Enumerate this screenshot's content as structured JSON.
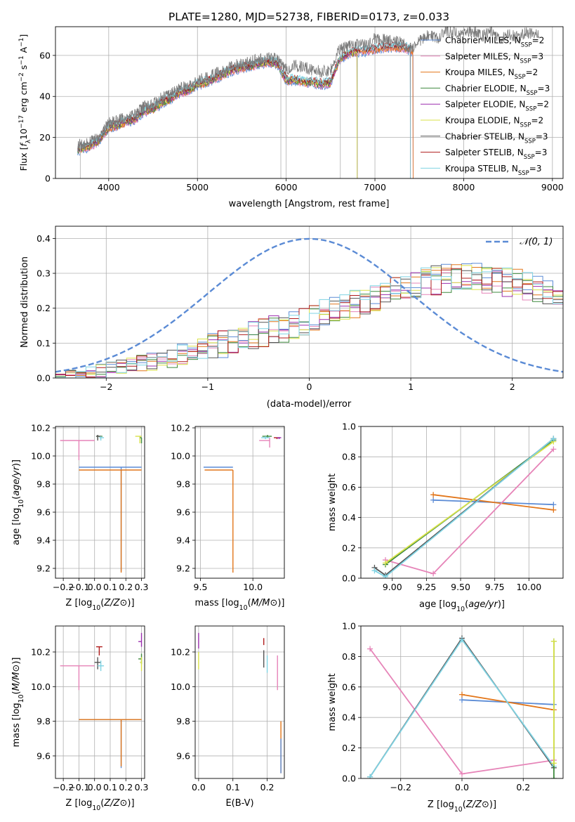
{
  "title": "PLATE=1280, MJD=52738, FIBERID=0173, z=0.033",
  "models": [
    {
      "name": "Chabrier MILES",
      "nssp": "2",
      "color": "#5b8bd5"
    },
    {
      "name": "Salpeter MILES",
      "nssp": "3",
      "color": "#e684b8"
    },
    {
      "name": "Kroupa MILES",
      "nssp": "2",
      "color": "#e2761a"
    },
    {
      "name": "Chabrier ELODIE",
      "nssp": "3",
      "color": "#3f8a3f"
    },
    {
      "name": "Salpeter ELODIE",
      "nssp": "2",
      "color": "#9b2fae"
    },
    {
      "name": "Kroupa ELODIE",
      "nssp": "2",
      "color": "#d9e24a"
    },
    {
      "name": "Chabrier STELIB",
      "nssp": "3",
      "color": "#555555"
    },
    {
      "name": "Salpeter STELIB",
      "nssp": "3",
      "color": "#b01c1c"
    },
    {
      "name": "Kroupa STELIB",
      "nssp": "3",
      "color": "#7fd3e3"
    }
  ],
  "chart_data": [
    {
      "id": "spectrum",
      "type": "line",
      "xlabel": "wavelength [Angstrom, rest frame]",
      "ylabel_parts": [
        "Flux [",
        "f",
        "λ",
        "10",
        "−17",
        " erg cm",
        "−2",
        " s",
        "−1",
        " A",
        "−1",
        "]"
      ],
      "xlim": [
        3400,
        9120
      ],
      "ylim": [
        0,
        74
      ],
      "xticks": [
        4000,
        5000,
        6000,
        7000,
        8000,
        9000
      ],
      "yticks": [
        0,
        20,
        40,
        60
      ],
      "data_envelope": {
        "x": [
          3650,
          3800,
          3900,
          4000,
          4100,
          4200,
          4300,
          4400,
          4500,
          4600,
          4700,
          4800,
          4900,
          5000,
          5100,
          5200,
          5300,
          5400,
          5500,
          5600,
          5700,
          5800,
          5900,
          6000,
          6100,
          6200,
          6300,
          6400,
          6500,
          6600,
          6700,
          6800,
          6900,
          7000,
          7100,
          7200,
          7300,
          7400,
          7500,
          7600,
          7700,
          7800,
          7900,
          8000,
          8100,
          8200,
          8300,
          8400,
          8500,
          8600,
          8700,
          8800
        ],
        "y": [
          16,
          18,
          20,
          27,
          28,
          30,
          31,
          35,
          36,
          40,
          41,
          44,
          45,
          48,
          49,
          51,
          53,
          55,
          56,
          57,
          58,
          59,
          58,
          53,
          55,
          54,
          53,
          52,
          53,
          63,
          65,
          66,
          65,
          68,
          68,
          67,
          66,
          63,
          67,
          70,
          68,
          72,
          71,
          70,
          72,
          69,
          72,
          68,
          70,
          69,
          71,
          71
        ]
      },
      "model_envelope": {
        "x": [
          3650,
          3800,
          3900,
          4000,
          4100,
          4200,
          4300,
          4400,
          4500,
          4600,
          4700,
          4800,
          4900,
          5000,
          5100,
          5200,
          5300,
          5400,
          5500,
          5600,
          5700,
          5800,
          5900,
          6000,
          6100,
          6200,
          6300,
          6400,
          6500,
          6600,
          6700,
          6800,
          6900,
          7000,
          7100,
          7200,
          7300,
          7400
        ],
        "y": [
          14,
          16,
          19,
          25,
          26,
          28,
          29,
          33,
          34,
          37,
          39,
          42,
          43,
          46,
          47,
          49,
          51,
          53,
          54,
          55,
          56,
          57,
          56,
          48,
          48,
          47,
          47,
          46,
          47,
          58,
          61,
          62,
          62,
          63,
          64,
          64,
          64,
          63
        ]
      },
      "model_cutoffs": [
        {
          "model": "Salpeter MILES",
          "x": 7430
        },
        {
          "model": "Kroupa MILES",
          "x": 7430
        },
        {
          "model": "Chabrier MILES",
          "x": 7430
        },
        {
          "model": "Kroupa ELODIE",
          "x": 6800
        },
        {
          "model": "Salpeter ELODIE",
          "x": 6800
        },
        {
          "model": "Chabrier ELODIE",
          "x": 6800
        }
      ]
    },
    {
      "id": "residuals",
      "type": "step",
      "xlabel": "(data-model)/error",
      "ylabel": "Normed distribution",
      "xlim": [
        -2.5,
        2.5
      ],
      "ylim": [
        0,
        0.435
      ],
      "xticks": [
        -2,
        -1,
        0,
        1,
        2
      ],
      "yticks": [
        0.0,
        0.1,
        0.2,
        0.3,
        0.4
      ],
      "normal_label": "𝒩(0, 1)",
      "normal_color": "#5b8bd5",
      "bins": {
        "start": -2.5,
        "width": 0.1,
        "count": 50
      },
      "base_profile": [
        0.005,
        0.008,
        0.012,
        0.016,
        0.02,
        0.025,
        0.03,
        0.035,
        0.04,
        0.045,
        0.052,
        0.06,
        0.067,
        0.075,
        0.082,
        0.09,
        0.097,
        0.105,
        0.112,
        0.12,
        0.128,
        0.136,
        0.145,
        0.155,
        0.165,
        0.175,
        0.185,
        0.195,
        0.205,
        0.215,
        0.225,
        0.235,
        0.245,
        0.255,
        0.262,
        0.27,
        0.276,
        0.28,
        0.285,
        0.288,
        0.29,
        0.288,
        0.285,
        0.28,
        0.276,
        0.27,
        0.262,
        0.255,
        0.25,
        0.245
      ]
    },
    {
      "id": "age-vs-z",
      "type": "errorbar",
      "xlabel": "Z [log10(Z/Z⊙)]",
      "ylabel": "age  [log10(age/yr)]",
      "xlim": [
        -0.25,
        0.32
      ],
      "ylim": [
        9.13,
        10.21
      ],
      "xticks": [
        -0.2,
        -0.1,
        0.0,
        0.1,
        0.2,
        0.3
      ],
      "yticks": [
        9.2,
        9.4,
        9.6,
        9.8,
        10.0,
        10.2
      ],
      "points": [
        {
          "model": "Chabrier MILES",
          "x": 0.17,
          "y": 9.92,
          "xerr": [
            0.27,
            0.13
          ],
          "yerr": [
            0.74,
            0.0
          ]
        },
        {
          "model": "Kroupa MILES",
          "x": 0.17,
          "y": 9.9,
          "xerr": [
            0.27,
            0.13
          ],
          "yerr": [
            0.73,
            0.0
          ]
        },
        {
          "model": "Salpeter MILES",
          "x": -0.1,
          "y": 10.11,
          "xerr": [
            0.12,
            0.1
          ],
          "yerr": [
            0.14,
            0.0
          ]
        },
        {
          "model": "Chabrier ELODIE",
          "x": 0.02,
          "y": 10.14,
          "xerr": [
            0.01,
            0.03
          ],
          "yerr": [
            0.02,
            0.01
          ]
        },
        {
          "model": "Chabrier STELIB",
          "x": 0.02,
          "y": 10.14,
          "xerr": [
            0.01,
            0.02
          ],
          "yerr": [
            0.03,
            0.01
          ]
        },
        {
          "model": "Kroupa STELIB",
          "x": 0.04,
          "y": 10.13,
          "xerr": [
            0.01,
            0.02
          ],
          "yerr": [
            0.02,
            0.01
          ]
        },
        {
          "model": "Kroupa ELODIE",
          "x": 0.29,
          "y": 10.14,
          "xerr": [
            0.03,
            0.01
          ],
          "yerr": [
            0.05,
            0.0
          ]
        },
        {
          "model": "Chabrier ELODIE",
          "x": 0.3,
          "y": 10.13,
          "xerr": [
            0.01,
            0.0
          ],
          "yerr": [
            0.04,
            0.0
          ]
        }
      ]
    },
    {
      "id": "age-vs-mass",
      "type": "errorbar",
      "xlabel": "mass [log10(M/M⊙)]",
      "ylabel": "",
      "xlim": [
        9.45,
        10.3
      ],
      "ylim": [
        9.13,
        10.21
      ],
      "xticks": [
        9.5,
        10.0
      ],
      "yticks": [
        9.2,
        9.4,
        9.6,
        9.8,
        10.0,
        10.2
      ],
      "points": [
        {
          "model": "Chabrier MILES",
          "x": 9.81,
          "y": 9.92,
          "xerr": [
            0.28,
            0.0
          ],
          "yerr": [
            0.0,
            0.0
          ]
        },
        {
          "model": "Kroupa MILES",
          "x": 9.81,
          "y": 9.9,
          "xerr": [
            0.27,
            0.0
          ],
          "yerr": [
            0.73,
            0.0
          ]
        },
        {
          "model": "Salpeter MILES",
          "x": 10.16,
          "y": 10.11,
          "xerr": [
            0.1,
            0.0
          ],
          "yerr": [
            0.05,
            0.02
          ]
        },
        {
          "model": "Chabrier ELODIE",
          "x": 10.14,
          "y": 10.14,
          "xerr": [
            0.05,
            0.04
          ],
          "yerr": [
            0.01,
            0.01
          ]
        },
        {
          "model": "Kroupa STELIB",
          "x": 10.12,
          "y": 10.13,
          "xerr": [
            0.04,
            0.04
          ],
          "yerr": [
            0.01,
            0.01
          ]
        },
        {
          "model": "Salpeter STELIB",
          "x": 10.23,
          "y": 10.13,
          "xerr": [
            0.03,
            0.03
          ],
          "yerr": [
            0.01,
            0.0
          ]
        },
        {
          "model": "Salpeter ELODIE",
          "x": 10.25,
          "y": 10.13,
          "xerr": [
            0.02,
            0.02
          ],
          "yerr": [
            0.01,
            0.0
          ]
        }
      ]
    },
    {
      "id": "weight-vs-age",
      "type": "line",
      "xlabel": "age  [log10(age/yr)]",
      "ylabel": "mass weight",
      "xlim": [
        8.77,
        10.25
      ],
      "ylim": [
        0,
        1.0
      ],
      "xticks": [
        9.0,
        9.25,
        9.5,
        9.75,
        10.0
      ],
      "yticks": [
        0.0,
        0.2,
        0.4,
        0.6,
        0.8,
        1.0
      ],
      "series": [
        {
          "model": "Chabrier MILES",
          "x": [
            9.3,
            10.18
          ],
          "y": [
            0.515,
            0.485
          ]
        },
        {
          "model": "Kroupa MILES",
          "x": [
            9.3,
            10.18
          ],
          "y": [
            0.55,
            0.45
          ]
        },
        {
          "model": "Salpeter MILES",
          "x": [
            8.95,
            9.3,
            10.18
          ],
          "y": [
            0.12,
            0.03,
            0.85
          ]
        },
        {
          "model": "Chabrier ELODIE",
          "x": [
            8.95,
            10.18
          ],
          "y": [
            0.09,
            0.91
          ]
        },
        {
          "model": "Kroupa ELODIE",
          "x": [
            8.95,
            10.18
          ],
          "y": [
            0.1,
            0.9
          ]
        },
        {
          "model": "Chabrier STELIB",
          "x": [
            8.87,
            8.95,
            10.18
          ],
          "y": [
            0.07,
            0.02,
            0.92
          ]
        },
        {
          "model": "Kroupa STELIB",
          "x": [
            8.87,
            8.95,
            10.18
          ],
          "y": [
            0.05,
            0.01,
            0.92
          ]
        }
      ]
    },
    {
      "id": "mass-vs-z",
      "type": "errorbar",
      "xlabel": "Z [log10(Z/Z⊙)]",
      "ylabel": "mass [log10(M/M⊙)]",
      "xlim": [
        -0.25,
        0.32
      ],
      "ylim": [
        9.47,
        10.35
      ],
      "xticks": [
        -0.2,
        -0.1,
        0.0,
        0.1,
        0.2,
        0.3
      ],
      "yticks": [
        9.6,
        9.8,
        10.0,
        10.2
      ],
      "points": [
        {
          "model": "Chabrier MILES",
          "x": 0.17,
          "y": 9.81,
          "xerr": [
            0.27,
            0.13
          ],
          "yerr": [
            0.28,
            0.0
          ]
        },
        {
          "model": "Kroupa MILES",
          "x": 0.17,
          "y": 9.81,
          "xerr": [
            0.27,
            0.13
          ],
          "yerr": [
            0.27,
            0.0
          ]
        },
        {
          "model": "Salpeter MILES",
          "x": -0.1,
          "y": 10.12,
          "xerr": [
            0.12,
            0.1
          ],
          "yerr": [
            0.14,
            0.0
          ]
        },
        {
          "model": "Salpeter STELIB",
          "x": 0.03,
          "y": 10.23,
          "xerr": [
            0.02,
            0.02
          ],
          "yerr": [
            0.05,
            0.0
          ]
        },
        {
          "model": "Chabrier STELIB",
          "x": 0.02,
          "y": 10.14,
          "xerr": [
            0.02,
            0.02
          ],
          "yerr": [
            0.04,
            0.03
          ]
        },
        {
          "model": "Kroupa STELIB",
          "x": 0.04,
          "y": 10.12,
          "xerr": [
            0.02,
            0.02
          ],
          "yerr": [
            0.03,
            0.03
          ]
        },
        {
          "model": "Salpeter ELODIE",
          "x": 0.3,
          "y": 10.26,
          "xerr": [
            0.02,
            0.0
          ],
          "yerr": [
            0.03,
            0.05
          ]
        },
        {
          "model": "Chabrier ELODIE",
          "x": 0.3,
          "y": 10.16,
          "xerr": [
            0.02,
            0.0
          ],
          "yerr": [
            0.03,
            0.03
          ]
        },
        {
          "model": "Kroupa ELODIE",
          "x": 0.3,
          "y": 10.14,
          "xerr": [
            0.01,
            0.0
          ],
          "yerr": [
            0.05,
            0.03
          ]
        }
      ]
    },
    {
      "id": "mass-vs-ebv",
      "type": "errorbar",
      "xlabel": "E(B-V)",
      "ylabel": "",
      "xlim": [
        -0.01,
        0.25
      ],
      "ylim": [
        9.47,
        10.35
      ],
      "xticks": [
        0.0,
        0.1,
        0.2
      ],
      "yticks": [
        9.6,
        9.8,
        10.0,
        10.2
      ],
      "points": [
        {
          "model": "Salpeter ELODIE",
          "x": 0.0,
          "y": 10.26,
          "xerr": [
            0.0,
            0.0
          ],
          "yerr": [
            0.04,
            0.05
          ]
        },
        {
          "model": "Kroupa ELODIE",
          "x": 0.0,
          "y": 10.15,
          "xerr": [
            0.0,
            0.0
          ],
          "yerr": [
            0.05,
            0.05
          ]
        },
        {
          "model": "Salpeter STELIB",
          "x": 0.19,
          "y": 10.26,
          "xerr": [
            0.0,
            0.0
          ],
          "yerr": [
            0.02,
            0.02
          ]
        },
        {
          "model": "Chabrier STELIB",
          "x": 0.19,
          "y": 10.16,
          "xerr": [
            0.0,
            0.0
          ],
          "yerr": [
            0.05,
            0.05
          ]
        },
        {
          "model": "Kroupa STELIB",
          "x": 0.2,
          "y": 10.13,
          "xerr": [
            0.0,
            0.0
          ],
          "yerr": [
            0.05,
            0.05
          ]
        },
        {
          "model": "Salpeter MILES",
          "x": 0.23,
          "y": 10.08,
          "xerr": [
            0.0,
            0.0
          ],
          "yerr": [
            0.1,
            0.1
          ]
        },
        {
          "model": "Kroupa MILES",
          "x": 0.24,
          "y": 9.65,
          "xerr": [
            0.0,
            0.0
          ],
          "yerr": [
            0.15,
            0.15
          ]
        },
        {
          "model": "Chabrier MILES",
          "x": 0.24,
          "y": 9.6,
          "xerr": [
            0.0,
            0.0
          ],
          "yerr": [
            0.1,
            0.1
          ]
        }
      ]
    },
    {
      "id": "weight-vs-z",
      "type": "line",
      "xlabel": "Z [log10(Z/Z⊙)]",
      "ylabel": "mass weight",
      "xlim": [
        -0.33,
        0.33
      ],
      "ylim": [
        0,
        1.0
      ],
      "xticks": [
        -0.2,
        0.0,
        0.2
      ],
      "yticks": [
        0.0,
        0.2,
        0.4,
        0.6,
        0.8,
        1.0
      ],
      "series": [
        {
          "model": "Chabrier MILES",
          "x": [
            0.0,
            0.3
          ],
          "y": [
            0.515,
            0.485
          ]
        },
        {
          "model": "Kroupa MILES",
          "x": [
            0.0,
            0.3
          ],
          "y": [
            0.55,
            0.45
          ]
        },
        {
          "model": "Salpeter MILES",
          "x": [
            -0.3,
            0.0,
            0.3
          ],
          "y": [
            0.85,
            0.03,
            0.12
          ]
        },
        {
          "model": "Chabrier STELIB",
          "x": [
            -0.3,
            0.0,
            0.3
          ],
          "y": [
            0.01,
            0.92,
            0.07
          ]
        },
        {
          "model": "Kroupa STELIB",
          "x": [
            -0.3,
            0.0,
            0.3
          ],
          "y": [
            0.01,
            0.91,
            0.08
          ]
        },
        {
          "model": "Chabrier ELODIE",
          "x": [
            0.3,
            0.3
          ],
          "y": [
            0.0,
            0.9
          ]
        },
        {
          "model": "Kroupa ELODIE",
          "x": [
            0.3,
            0.3
          ],
          "y": [
            0.1,
            0.9
          ]
        }
      ]
    }
  ]
}
